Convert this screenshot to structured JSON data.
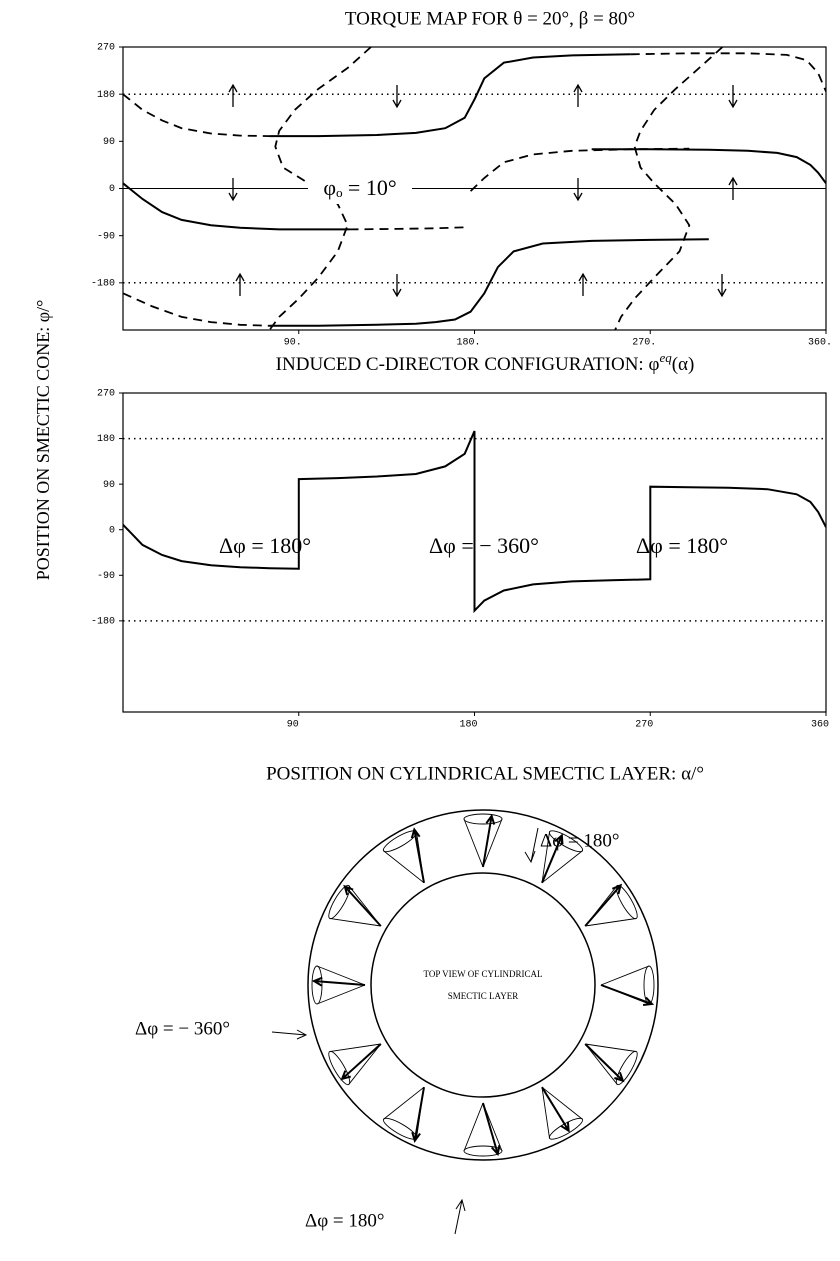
{
  "y_axis_label": "POSITION ON SMECTIC CONE: φ/°",
  "chart_data": [
    {
      "type": "line",
      "title": "TORQUE MAP FOR θ = 20°,  β = 80°",
      "annotations": [
        "φₒ = 10°"
      ],
      "xlim": [
        0,
        360
      ],
      "ylim": [
        -270,
        270
      ],
      "xticks": [
        {
          "value": 90,
          "label": "90."
        },
        {
          "value": 180,
          "label": "180."
        },
        {
          "value": 270,
          "label": "270."
        },
        {
          "value": 360,
          "label": "360."
        }
      ],
      "yticks": [
        270,
        180,
        90,
        0,
        -90,
        -180
      ],
      "series": [
        {
          "color": "#000",
          "style": "dotted",
          "x": [
            0,
            360
          ],
          "values": [
            180,
            180
          ]
        },
        {
          "color": "#000",
          "style": "dotted",
          "x": [
            0,
            360
          ],
          "values": [
            -180,
            -180
          ]
        },
        {
          "color": "#000",
          "style": "thin",
          "x": [
            0,
            360
          ],
          "values": [
            0,
            0
          ]
        },
        {
          "color": "#000",
          "style": "solid",
          "x": [
            0,
            10,
            20,
            30,
            45,
            60,
            80,
            100,
            116
          ],
          "values": [
            10,
            -20,
            -45,
            -60,
            -70,
            -75,
            -78,
            -78,
            -78
          ]
        },
        {
          "color": "#000",
          "style": "solid",
          "x": [
            75,
            100,
            130,
            150,
            165,
            175,
            180,
            185,
            195,
            210,
            230,
            260
          ],
          "values": [
            100,
            100,
            102,
            106,
            115,
            135,
            170,
            210,
            240,
            250,
            254,
            256
          ]
        },
        {
          "color": "#000",
          "style": "solid",
          "x": [
            240,
            270,
            300,
            320,
            335,
            345,
            352,
            356,
            360
          ],
          "values": [
            75,
            75,
            74,
            72,
            68,
            60,
            45,
            30,
            10
          ]
        },
        {
          "color": "#000",
          "style": "solid",
          "x": [
            160,
            170,
            178,
            185,
            192,
            200,
            215,
            240,
            270,
            300
          ],
          "values": [
            -255,
            -250,
            -235,
            -200,
            -150,
            -120,
            -105,
            -100,
            -98,
            -97
          ]
        },
        {
          "color": "#000",
          "style": "solid",
          "x": [
            75,
            100,
            130,
            150,
            160
          ],
          "values": [
            -262,
            -262,
            -260,
            -258,
            -255
          ]
        },
        {
          "color": "#000",
          "style": "dashed",
          "x": [
            0,
            10,
            20,
            30,
            45,
            60,
            75
          ],
          "values": [
            180,
            150,
            130,
            115,
            105,
            101,
            100
          ]
        },
        {
          "color": "#000",
          "style": "dashed",
          "x": [
            127,
            115,
            100,
            88,
            80,
            78,
            82,
            95,
            110,
            115,
            110,
            100,
            90,
            80,
            75
          ],
          "values": [
            270,
            230,
            190,
            150,
            110,
            80,
            40,
            10,
            -30,
            -70,
            -120,
            -170,
            -210,
            -245,
            -270
          ]
        },
        {
          "color": "#000",
          "style": "dashed",
          "x": [
            178,
            185,
            195,
            210,
            230,
            260,
            290
          ],
          "values": [
            -5,
            20,
            50,
            65,
            72,
            75,
            76
          ]
        },
        {
          "color": "#000",
          "style": "dashed",
          "x": [
            116,
            140,
            160,
            175
          ],
          "values": [
            -78,
            -77,
            -76,
            -74
          ]
        },
        {
          "color": "#000",
          "style": "dashed",
          "x": [
            307,
            295,
            283,
            272,
            265,
            262,
            265,
            272,
            283,
            290,
            285,
            272,
            262,
            255,
            252
          ],
          "values": [
            270,
            230,
            190,
            150,
            110,
            80,
            40,
            10,
            -30,
            -70,
            -120,
            -170,
            -210,
            -245,
            -270
          ]
        },
        {
          "color": "#000",
          "style": "dashed",
          "x": [
            260,
            290,
            320,
            340,
            350,
            356,
            360
          ],
          "values": [
            256,
            258,
            258,
            255,
            245,
            220,
            185
          ]
        },
        {
          "color": "#000",
          "style": "dashed",
          "x": [
            0,
            15,
            30,
            45,
            60,
            75
          ],
          "values": [
            -200,
            -225,
            -245,
            -255,
            -260,
            -262
          ]
        }
      ]
    },
    {
      "type": "line",
      "title": [
        "INDUCED C-DIRECTOR CONFIGURATION: φ",
        "eq",
        "(α)"
      ],
      "x_label": "POSITION ON CYLINDRICAL SMECTIC LAYER: α/°",
      "annotations": [
        "Δφ = 180°",
        "Δφ = − 360°",
        "Δφ = 180°"
      ],
      "xlim": [
        0,
        360
      ],
      "ylim": [
        -360,
        270
      ],
      "xticks": [
        90,
        180,
        270,
        360
      ],
      "yticks": [
        270,
        180,
        90,
        0,
        -90,
        -180
      ],
      "series": [
        {
          "color": "#000",
          "style": "dotted",
          "x": [
            0,
            360
          ],
          "values": [
            180,
            180
          ]
        },
        {
          "color": "#000",
          "style": "dotted",
          "x": [
            0,
            360
          ],
          "values": [
            -180,
            -180
          ]
        },
        {
          "color": "#000",
          "style": "solid",
          "x": [
            0,
            10,
            20,
            30,
            45,
            60,
            75,
            90,
            90,
            110,
            130,
            150,
            165,
            175,
            180,
            180,
            185,
            195,
            210,
            230,
            250,
            270,
            270,
            290,
            310,
            330,
            345,
            352,
            356,
            360
          ],
          "values": [
            10,
            -30,
            -50,
            -62,
            -70,
            -74,
            -76,
            -77,
            100,
            102,
            105,
            110,
            125,
            150,
            195,
            -160,
            -140,
            -120,
            -108,
            -102,
            -100,
            -98,
            85,
            84,
            83,
            80,
            70,
            55,
            35,
            5
          ]
        }
      ]
    }
  ],
  "diagram": {
    "inner_label": [
      "TOP VIEW OF CYLINDRICAL",
      "SMECTIC LAYER"
    ],
    "labels": [
      "Δφ = 180°",
      "Δφ = − 360°",
      "Δφ = 180°"
    ]
  }
}
